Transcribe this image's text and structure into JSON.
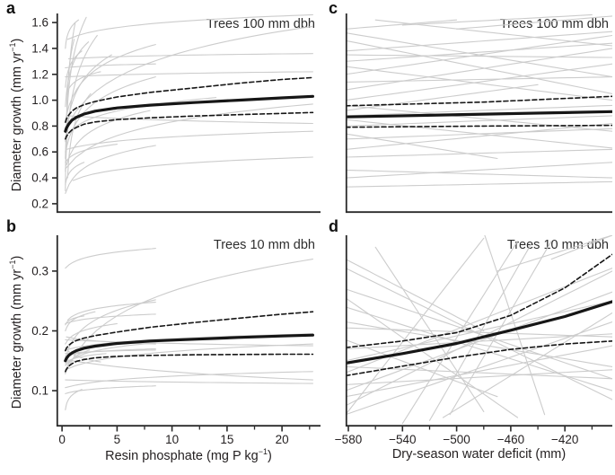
{
  "figure": {
    "background": "#ffffff",
    "text_color": "#231f20",
    "axis_color": "#2a2a2a",
    "fit_color": "#161616",
    "ci_color": "#161616",
    "individual_line_color": "#cccccc"
  },
  "labels": {
    "panel_a": "a",
    "panel_b": "b",
    "panel_c": "c",
    "panel_d": "d",
    "ylabel_pre": "Diameter growth (mm yr",
    "ylabel_sup": "−1",
    "ylabel_post": ")",
    "xlabel_left_pre": "Resin phosphate (mg P kg",
    "xlabel_left_sup": "−1",
    "xlabel_left_post": ")",
    "xlabel_right": "Dry-season water deficit (mm)"
  },
  "chart_data": [
    {
      "id": "a",
      "type": "line",
      "title_annotation": "Trees 100 mm dbh",
      "x_variable": "Resin phosphate (mg P kg-1)",
      "y_variable": "Diameter growth (mm yr-1)",
      "xlim": [
        -0.5,
        23.5
      ],
      "ylim": [
        0.13,
        1.67
      ],
      "yticks": [
        0.2,
        0.4,
        0.6,
        0.8,
        1.0,
        1.2,
        1.4,
        1.6
      ],
      "ytick_labels": [
        "0.2",
        "0.4",
        "0.6",
        "0.8",
        "1.0",
        "1.2",
        "1.4",
        "1.6"
      ],
      "xticks_major": [],
      "xtick_labels": [],
      "xticks_minor": [],
      "fit": {
        "x": [
          0.3,
          0.4,
          0.6,
          0.9,
          1.3,
          2,
          3,
          5,
          8,
          12,
          16,
          20,
          22.8
        ],
        "y": [
          0.76,
          0.785,
          0.815,
          0.845,
          0.868,
          0.893,
          0.915,
          0.94,
          0.962,
          0.982,
          1.0,
          1.018,
          1.03
        ]
      },
      "ci_upper": {
        "x": [
          0.3,
          0.4,
          0.6,
          0.9,
          1.3,
          2,
          3,
          5,
          8,
          12,
          16,
          20,
          22.8
        ],
        "y": [
          0.83,
          0.855,
          0.885,
          0.915,
          0.94,
          0.965,
          0.99,
          1.025,
          1.06,
          1.095,
          1.13,
          1.16,
          1.175
        ]
      },
      "ci_lower": {
        "x": [
          0.3,
          0.4,
          0.6,
          0.9,
          1.3,
          2,
          3,
          5,
          8,
          12,
          16,
          20,
          22.8
        ],
        "y": [
          0.7,
          0.72,
          0.745,
          0.77,
          0.79,
          0.815,
          0.832,
          0.85,
          0.864,
          0.878,
          0.888,
          0.898,
          0.905
        ]
      },
      "individual_lines": [
        [
          0.3,
          0.3,
          1.2,
          1.6,
          0.8
        ],
        [
          0.3,
          0.55,
          2.2,
          1.64,
          0.75
        ],
        [
          0.3,
          0.45,
          3.2,
          1.5,
          0.7
        ],
        [
          0.4,
          0.75,
          1.1,
          1.47,
          0.7
        ],
        [
          0.3,
          0.95,
          2.4,
          1.45,
          0.6
        ],
        [
          0.3,
          0.68,
          4.5,
          1.35,
          0.65
        ],
        [
          0.5,
          0.4,
          2.6,
          1.05,
          0.6
        ],
        [
          0.3,
          1.1,
          1.8,
          1.38,
          0.5
        ],
        [
          0.3,
          0.85,
          8.5,
          1.43,
          0.6
        ],
        [
          0.3,
          0.6,
          8.5,
          1.18,
          0.6
        ],
        [
          0.3,
          0.28,
          8.5,
          0.65,
          0.6
        ],
        [
          0.4,
          0.5,
          8.0,
          0.92,
          0.55
        ],
        [
          0.3,
          1.25,
          8.5,
          1.28,
          0.2
        ],
        [
          0.5,
          1.47,
          22.8,
          1.66,
          0.4
        ],
        [
          0.3,
          0.78,
          22.8,
          1.57,
          0.45
        ],
        [
          0.6,
          1.32,
          22.8,
          1.36,
          0.2
        ],
        [
          0.3,
          0.47,
          22.8,
          0.97,
          0.5
        ],
        [
          0.5,
          0.88,
          22.8,
          0.82,
          0.1
        ],
        [
          0.4,
          0.62,
          22.8,
          0.76,
          0.3
        ],
        [
          0.3,
          1.18,
          22.8,
          1.22,
          0.15
        ],
        [
          1.0,
          0.38,
          22.8,
          0.56,
          0.4
        ],
        [
          0.3,
          0.72,
          14.0,
          1.02,
          0.5
        ],
        [
          0.3,
          0.52,
          5.0,
          0.66,
          0.4
        ],
        [
          0.3,
          0.35,
          2.0,
          0.52,
          0.5
        ],
        [
          0.3,
          1.4,
          1.5,
          1.62,
          0.6
        ],
        [
          0.4,
          1.05,
          3.5,
          1.22,
          0.4
        ]
      ]
    },
    {
      "id": "b",
      "type": "line",
      "title_annotation": "Trees 10 mm dbh",
      "x_variable": "Resin phosphate (mg P kg-1)",
      "y_variable": "Diameter growth (mm yr-1)",
      "xlim": [
        -0.5,
        23.5
      ],
      "ylim": [
        0.04,
        0.36
      ],
      "yticks": [
        0.1,
        0.2,
        0.3
      ],
      "ytick_labels": [
        "0.1",
        "0.2",
        "0.3"
      ],
      "xticks_major": [
        0,
        5,
        10,
        15,
        20
      ],
      "xtick_labels": [
        "0",
        "5",
        "10",
        "15",
        "20"
      ],
      "xticks_minor": [
        2.5,
        7.5,
        12.5,
        17.5,
        22.5
      ],
      "fit": {
        "x": [
          0.3,
          0.4,
          0.6,
          0.9,
          1.3,
          2,
          3,
          5,
          8,
          12,
          16,
          20,
          22.8
        ],
        "y": [
          0.15,
          0.154,
          0.159,
          0.163,
          0.167,
          0.171,
          0.1745,
          0.179,
          0.183,
          0.186,
          0.189,
          0.1915,
          0.193
        ]
      },
      "ci_upper": {
        "x": [
          0.3,
          0.4,
          0.6,
          0.9,
          1.3,
          2,
          3,
          5,
          8,
          12,
          16,
          20,
          22.8
        ],
        "y": [
          0.167,
          0.171,
          0.176,
          0.18,
          0.184,
          0.188,
          0.192,
          0.198,
          0.206,
          0.214,
          0.221,
          0.228,
          0.232
        ]
      },
      "ci_lower": {
        "x": [
          0.3,
          0.4,
          0.6,
          0.9,
          1.3,
          2,
          3,
          5,
          8,
          12,
          16,
          20,
          22.8
        ],
        "y": [
          0.132,
          0.136,
          0.141,
          0.145,
          0.149,
          0.152,
          0.155,
          0.1575,
          0.159,
          0.16,
          0.1605,
          0.161,
          0.161
        ]
      },
      "individual_lines": [
        [
          0.3,
          0.305,
          8.5,
          0.338,
          0.5
        ],
        [
          0.3,
          0.13,
          22.8,
          0.32,
          0.45
        ],
        [
          0.3,
          0.155,
          8.5,
          0.252,
          0.55
        ],
        [
          0.3,
          0.2,
          3.0,
          0.232,
          0.5
        ],
        [
          0.3,
          0.212,
          8.5,
          0.228,
          0.3
        ],
        [
          0.3,
          0.142,
          8.5,
          0.18,
          0.5
        ],
        [
          0.3,
          0.168,
          22.8,
          0.195,
          0.35
        ],
        [
          0.3,
          0.135,
          22.8,
          0.178,
          0.4
        ],
        [
          0.3,
          0.095,
          8.5,
          0.108,
          0.3
        ],
        [
          0.3,
          0.068,
          1.8,
          0.102,
          0.6
        ],
        [
          0.3,
          0.128,
          2.5,
          0.168,
          0.6
        ],
        [
          0.3,
          0.178,
          5.0,
          0.212,
          0.5
        ],
        [
          0.3,
          0.152,
          22.8,
          0.118,
          0.1
        ],
        [
          0.3,
          0.162,
          8.5,
          0.168,
          0.2
        ],
        [
          0.3,
          0.118,
          22.8,
          0.112,
          0.1
        ],
        [
          0.5,
          0.218,
          8.5,
          0.248,
          0.5
        ],
        [
          0.3,
          0.172,
          3.5,
          0.148,
          0.3
        ],
        [
          0.4,
          0.19,
          8.5,
          0.178,
          0.2
        ],
        [
          0.3,
          0.105,
          22.8,
          0.132,
          0.4
        ],
        [
          0.3,
          0.145,
          4.0,
          0.162,
          0.5
        ],
        [
          0.3,
          0.158,
          8.5,
          0.17,
          0.3
        ],
        [
          0.3,
          0.185,
          22.8,
          0.175,
          0.1
        ],
        [
          0.3,
          0.21,
          2.0,
          0.225,
          0.5
        ]
      ]
    },
    {
      "id": "c",
      "type": "line",
      "title_annotation": "Trees 100 mm dbh",
      "x_variable": "Dry-season water deficit (mm)",
      "y_variable": "Diameter growth (mm yr-1)",
      "xlim": [
        -582,
        -385
      ],
      "ylim": [
        0.13,
        1.67
      ],
      "yticks": [],
      "ytick_labels": [],
      "xticks_major": [],
      "xtick_labels": [],
      "xticks_minor": [],
      "fit": {
        "x": [
          -582,
          -385
        ],
        "y": [
          0.871,
          0.912
        ]
      },
      "ci_upper": {
        "x": [
          -582,
          -480,
          -385
        ],
        "y": [
          0.957,
          0.985,
          1.03
        ]
      },
      "ci_lower": {
        "x": [
          -582,
          -480,
          -385
        ],
        "y": [
          0.791,
          0.8,
          0.806
        ]
      },
      "individual_lines": [
        [
          -582,
          1.38,
          -385,
          1.53
        ],
        [
          -582,
          1.52,
          -385,
          1.18
        ],
        [
          -582,
          1.3,
          -385,
          1.44
        ],
        [
          -582,
          1.2,
          -385,
          1.5
        ],
        [
          -582,
          1.46,
          -385,
          1.05
        ],
        [
          -582,
          1.08,
          -385,
          1.4
        ],
        [
          -582,
          1.35,
          -385,
          1.33
        ],
        [
          -560,
          1.62,
          -385,
          1.42
        ],
        [
          -582,
          1.0,
          -385,
          1.28
        ],
        [
          -582,
          1.26,
          -385,
          1.0
        ],
        [
          -582,
          1.14,
          -385,
          1.18
        ],
        [
          -500,
          1.55,
          -385,
          1.65
        ],
        [
          -582,
          0.92,
          -440,
          1.12
        ],
        [
          -582,
          0.88,
          -385,
          0.96
        ],
        [
          -582,
          0.8,
          -385,
          0.88
        ],
        [
          -582,
          0.96,
          -385,
          0.76
        ],
        [
          -582,
          0.7,
          -385,
          0.78
        ],
        [
          -582,
          0.85,
          -385,
          0.63
        ],
        [
          -582,
          0.56,
          -385,
          0.62
        ],
        [
          -582,
          0.62,
          -385,
          0.82
        ],
        [
          -582,
          0.46,
          -385,
          0.4
        ],
        [
          -582,
          0.33,
          -385,
          0.37
        ],
        [
          -582,
          0.74,
          -470,
          0.55
        ],
        [
          -582,
          0.4,
          -385,
          0.52
        ],
        [
          -540,
          1.58,
          -400,
          1.66
        ],
        [
          -582,
          1.55,
          -500,
          1.62
        ]
      ]
    },
    {
      "id": "d",
      "type": "line",
      "title_annotation": "Trees 10 mm dbh",
      "x_variable": "Dry-season water deficit (mm)",
      "y_variable": "Diameter growth (mm yr-1)",
      "xlim": [
        -582,
        -385
      ],
      "ylim": [
        0.04,
        0.36
      ],
      "yticks": [],
      "ytick_labels": [],
      "xticks_major": [
        -580,
        -540,
        -500,
        -460,
        -420
      ],
      "xtick_labels": [
        "−580",
        "−540",
        "−500",
        "−460",
        "−420"
      ],
      "xticks_minor": [
        -560,
        -520,
        -480,
        -440,
        -400
      ],
      "fit": {
        "x": [
          -582,
          -540,
          -500,
          -460,
          -420,
          -385
        ],
        "y": [
          0.146,
          0.162,
          0.179,
          0.201,
          0.224,
          0.249
        ]
      },
      "ci_upper": {
        "x": [
          -582,
          -540,
          -500,
          -460,
          -420,
          -385
        ],
        "y": [
          0.172,
          0.183,
          0.197,
          0.226,
          0.272,
          0.328
        ]
      },
      "ci_lower": {
        "x": [
          -582,
          -540,
          -500,
          -460,
          -420,
          -385
        ],
        "y": [
          0.125,
          0.141,
          0.156,
          0.169,
          0.178,
          0.183
        ]
      },
      "individual_lines": [
        [
          -582,
          0.06,
          -480,
          0.355
        ],
        [
          -540,
          0.045,
          -455,
          0.35
        ],
        [
          -520,
          0.05,
          -445,
          0.345
        ],
        [
          -505,
          0.06,
          -430,
          0.35
        ],
        [
          -582,
          0.075,
          -385,
          0.3
        ],
        [
          -582,
          0.1,
          -385,
          0.265
        ],
        [
          -582,
          0.13,
          -385,
          0.305
        ],
        [
          -582,
          0.06,
          -385,
          0.215
        ],
        [
          -582,
          0.305,
          -385,
          0.085
        ],
        [
          -582,
          0.27,
          -385,
          0.12
        ],
        [
          -582,
          0.24,
          -385,
          0.1
        ],
        [
          -582,
          0.215,
          -385,
          0.14
        ],
        [
          -582,
          0.32,
          -480,
          0.2
        ],
        [
          -582,
          0.17,
          -385,
          0.195
        ],
        [
          -582,
          0.14,
          -385,
          0.12
        ],
        [
          -582,
          0.205,
          -385,
          0.19
        ],
        [
          -582,
          0.11,
          -385,
          0.135
        ],
        [
          -470,
          0.3,
          -385,
          0.36
        ],
        [
          -582,
          0.185,
          -470,
          0.09
        ],
        [
          -510,
          0.055,
          -385,
          0.23
        ],
        [
          -560,
          0.34,
          -480,
          0.065
        ],
        [
          -582,
          0.255,
          -455,
          0.055
        ],
        [
          -582,
          0.09,
          -385,
          0.175
        ],
        [
          -480,
          0.365,
          -435,
          0.06
        ],
        [
          -582,
          0.15,
          -385,
          0.25
        ],
        [
          -430,
          0.32,
          -385,
          0.36
        ]
      ]
    }
  ]
}
